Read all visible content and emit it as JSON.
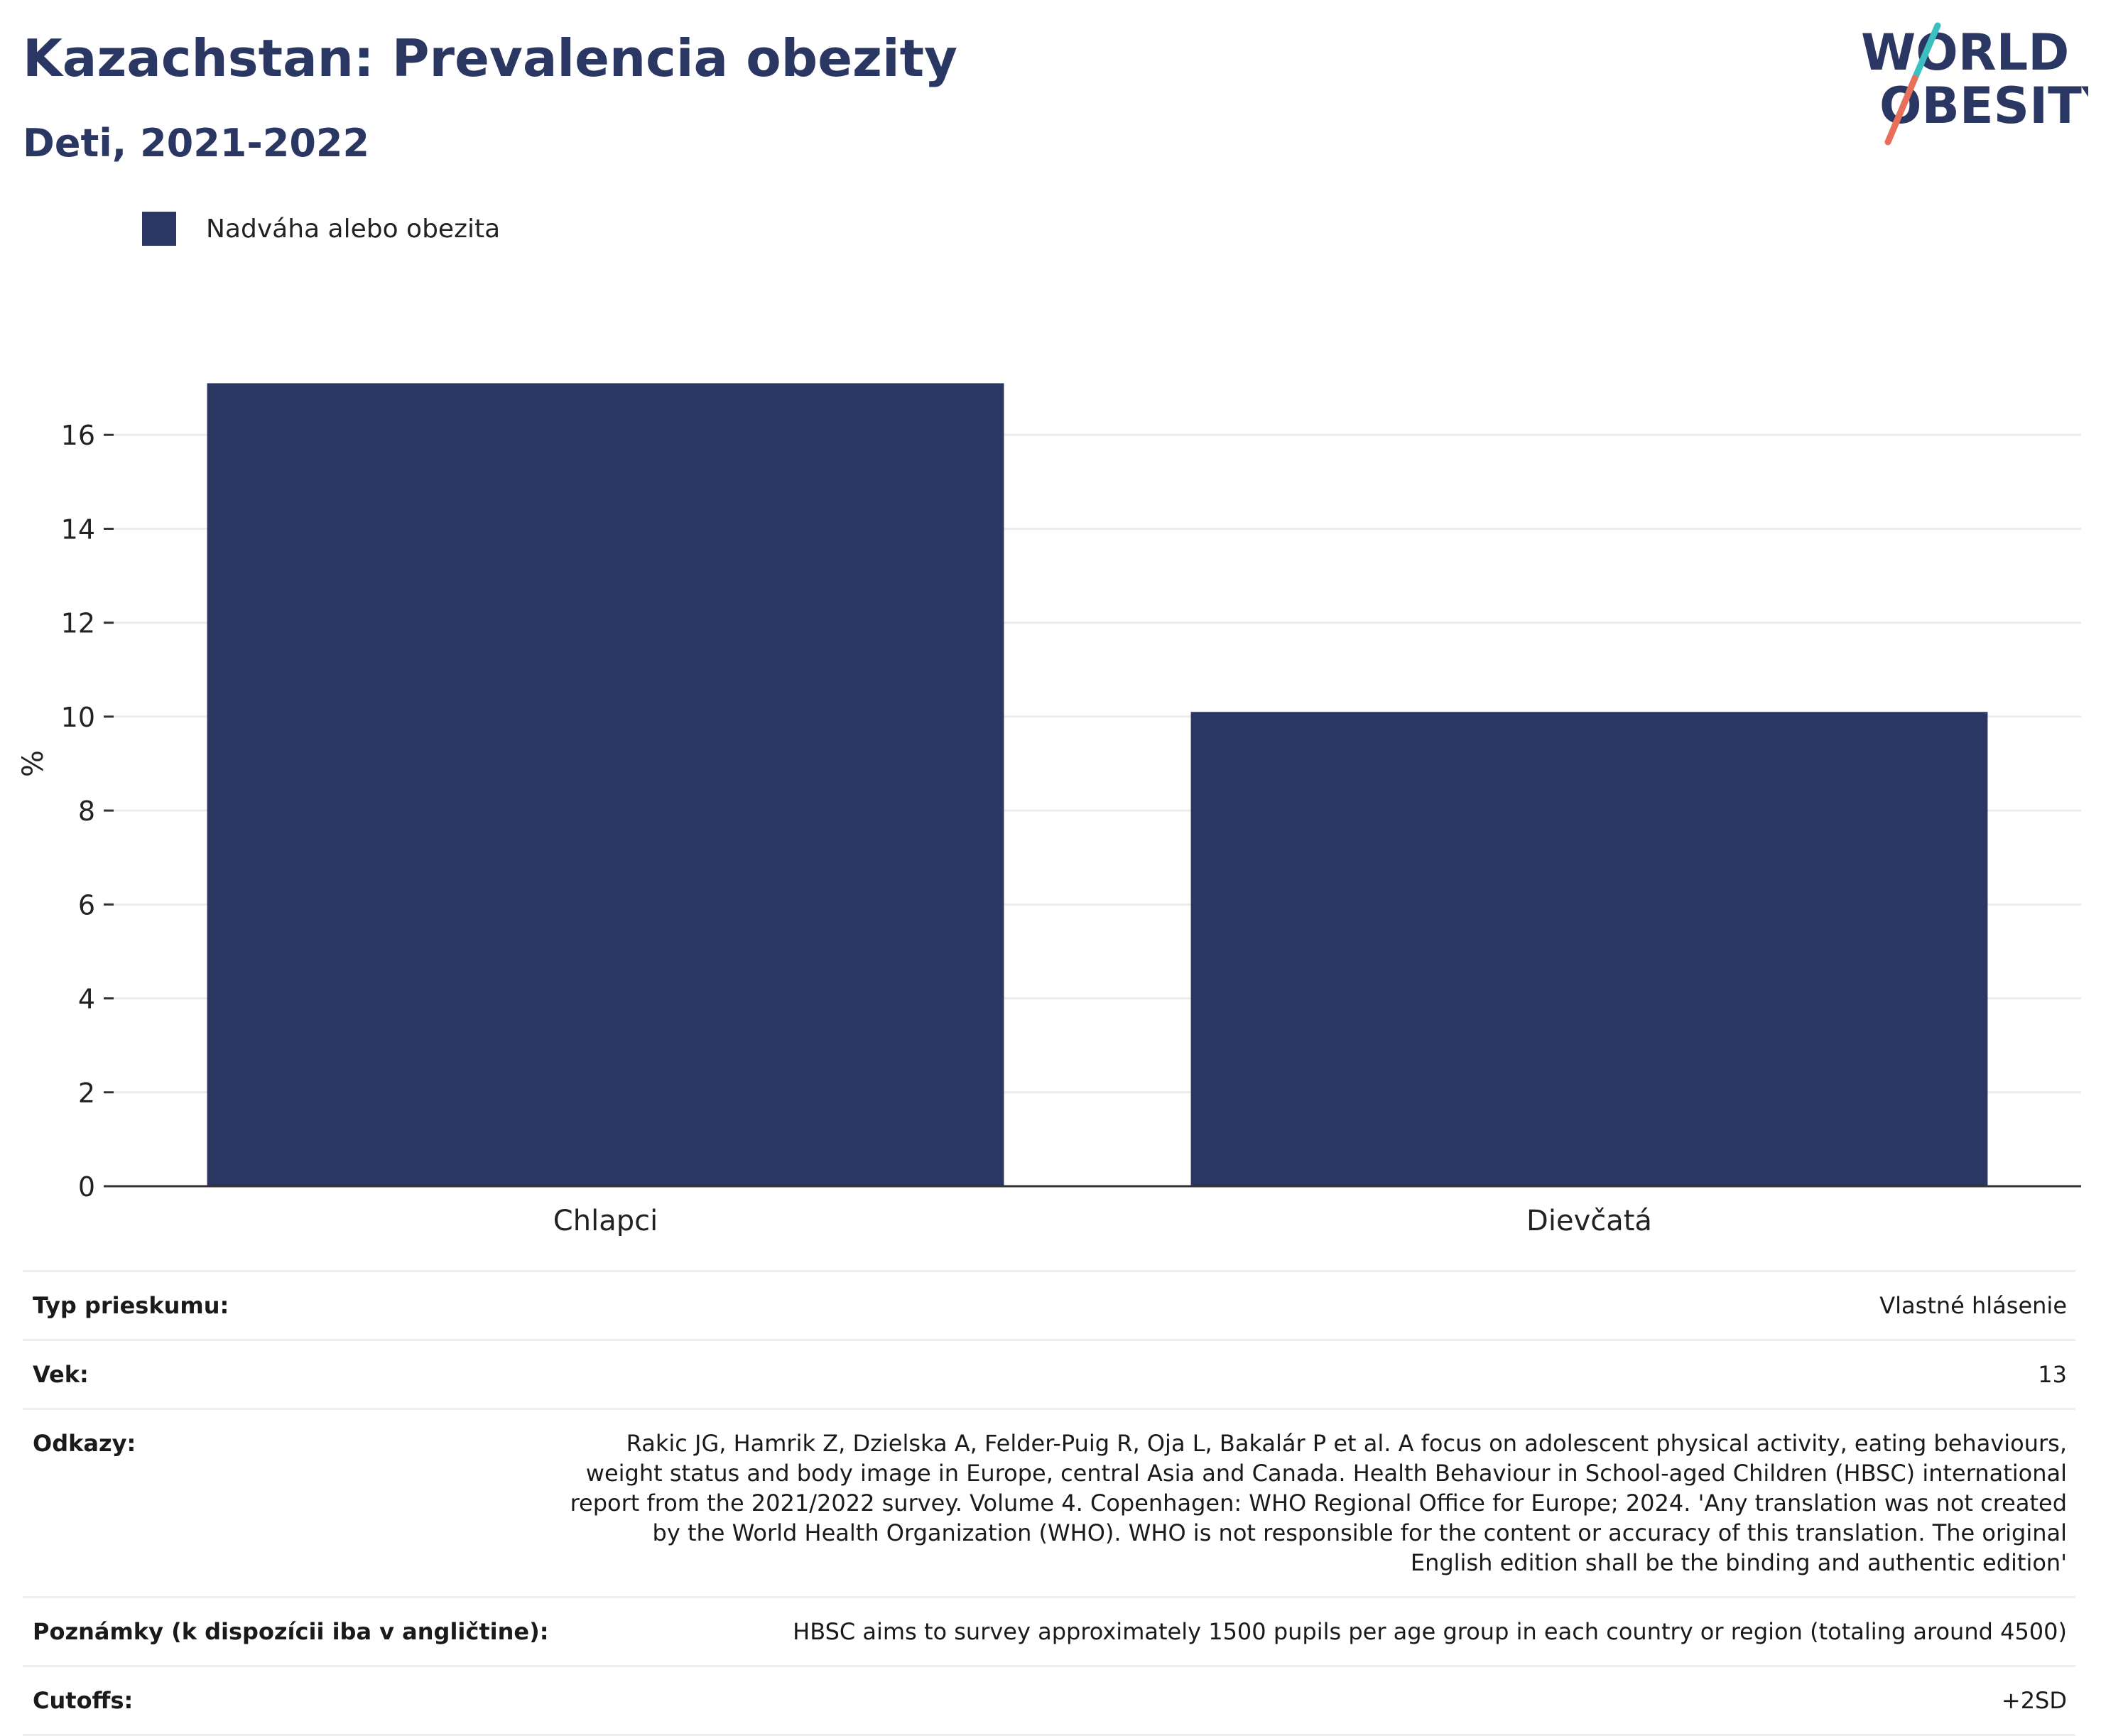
{
  "header": {
    "title": "Kazachstan: Prevalencia obezity",
    "subtitle": "Deti, 2021-2022"
  },
  "logo": {
    "line1": "WORLD",
    "line2": "OBESITY",
    "colors": {
      "text": "#2b3763",
      "slash_top": "#3bbfbf",
      "slash_bottom": "#e8705a"
    }
  },
  "colors": {
    "bar": "#2b3763",
    "gridline": "#ececec",
    "axis": "#333333"
  },
  "chart_data": {
    "type": "bar",
    "categories": [
      "Chlapci",
      "Dievčatá"
    ],
    "series": [
      {
        "name": "Nadváha alebo obezita",
        "values": [
          17.1,
          10.1
        ]
      }
    ],
    "ylabel": "%",
    "xlabel": "",
    "ylim": [
      0,
      18
    ],
    "yticks": [
      0,
      2,
      4,
      6,
      8,
      10,
      12,
      14,
      16
    ],
    "grid": true,
    "legend": "top-left"
  },
  "meta": [
    {
      "key": "Typ prieskumu:",
      "value": "Vlastné hlásenie"
    },
    {
      "key": "Vek:",
      "value": "13"
    },
    {
      "key": "Odkazy:",
      "value": "Rakic JG, Hamrik Z, Dzielska A, Felder-Puig R, Oja L, Bakalár P et al. A focus on adolescent physical activity, eating behaviours, weight status and body image in Europe, central Asia and Canada. Health Behaviour in School-aged Children (HBSC) international report from the 2021/2022 survey. Volume 4. Copenhagen: WHO Regional Office for Europe; 2024. 'Any translation was not created by the World Health Organization (WHO). WHO is not responsible for the content or accuracy of this translation. The original English edition shall be the binding and authentic edition'"
    },
    {
      "key": "Poznámky (k dispozícii iba v angličtine):",
      "value": "HBSC aims to survey approximately 1500 pupils per age group in each country or region (totaling around 4500)"
    },
    {
      "key": "Cutoffs:",
      "value": "+2SD"
    }
  ]
}
